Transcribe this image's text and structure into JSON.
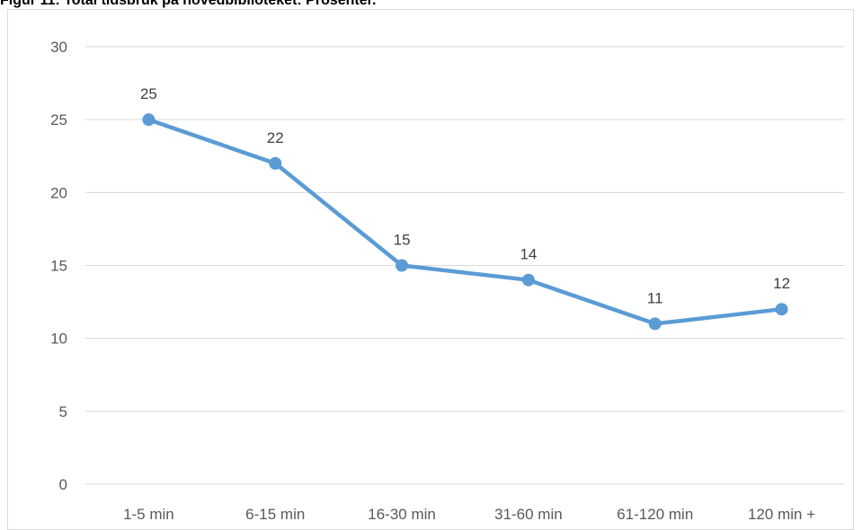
{
  "figure": {
    "title": "Figur 11: Total tidsbruk på hovedbiblioteket: Prosenter."
  },
  "chart_data": {
    "type": "line",
    "title": "",
    "xlabel": "",
    "ylabel": "",
    "categories": [
      "1-5 min",
      "6-15 min",
      "16-30 min",
      "31-60 min",
      "61-120 min",
      "120 min +"
    ],
    "series": [
      {
        "name": "",
        "values": [
          25,
          22,
          15,
          14,
          11,
          12
        ],
        "color": "#5b9bd5",
        "data_labels": [
          "25",
          "22",
          "15",
          "14",
          "11",
          "12"
        ]
      }
    ],
    "ylim": [
      0,
      30
    ],
    "yticks": [
      0,
      5,
      10,
      15,
      20,
      25,
      30
    ],
    "ytick_labels": [
      "0",
      "5",
      "10",
      "15",
      "20",
      "25",
      "30"
    ],
    "grid": true,
    "gridline_color": "#d9d9d9",
    "legend": "none"
  }
}
